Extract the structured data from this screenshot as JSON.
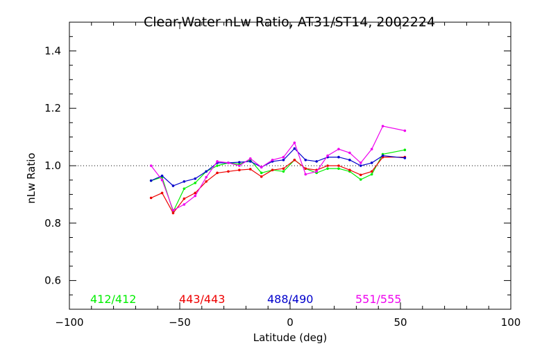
{
  "chart_data": {
    "type": "line",
    "title": "Clear-Water nLw Ratio, AT31/ST14, 2002224",
    "xlabel": "Latitude (deg)",
    "ylabel": "nLw Ratio",
    "xlim": [
      -100,
      100
    ],
    "ylim": [
      0.5,
      1.5
    ],
    "xticks": [
      -100,
      -50,
      0,
      50,
      100
    ],
    "yticks": [
      0.6,
      0.8,
      1.0,
      1.2,
      1.4
    ],
    "xtick_labels": [
      "−100",
      "−50",
      "0",
      "50",
      "100"
    ],
    "ytick_labels": [
      "0.6",
      "0.8",
      "1.0",
      "1.2",
      "1.4"
    ],
    "reference_line": 1.0,
    "grid": false,
    "legend_position": "bottom",
    "series": [
      {
        "name": "412/412",
        "color": "#00ee00",
        "x": [
          -63,
          -58,
          -53,
          -48,
          -43,
          -38,
          -33,
          -28,
          -23,
          -18,
          -13,
          -8,
          -3,
          2,
          7,
          12,
          17,
          22,
          27,
          32,
          37,
          42,
          52
        ],
        "y": [
          0.948,
          0.96,
          0.84,
          0.92,
          0.94,
          0.98,
          1.0,
          1.01,
          1.005,
          1.02,
          0.975,
          0.985,
          0.98,
          1.02,
          0.99,
          0.975,
          0.99,
          0.99,
          0.98,
          0.952,
          0.97,
          1.04,
          1.055
        ]
      },
      {
        "name": "443/443",
        "color": "#ee0000",
        "x": [
          -63,
          -58,
          -53,
          -48,
          -43,
          -38,
          -33,
          -28,
          -23,
          -18,
          -13,
          -8,
          -3,
          2,
          7,
          12,
          17,
          22,
          27,
          32,
          37,
          42,
          52
        ],
        "y": [
          0.888,
          0.905,
          0.835,
          0.885,
          0.905,
          0.945,
          0.975,
          0.98,
          0.985,
          0.988,
          0.962,
          0.985,
          0.99,
          1.02,
          0.99,
          0.985,
          1.0,
          1.0,
          0.985,
          0.968,
          0.98,
          1.03,
          1.03
        ]
      },
      {
        "name": "488/490",
        "color": "#0000cc",
        "x": [
          -63,
          -58,
          -53,
          -48,
          -43,
          -38,
          -33,
          -28,
          -23,
          -18,
          -13,
          -8,
          -3,
          2,
          7,
          12,
          17,
          22,
          27,
          32,
          37,
          42,
          52
        ],
        "y": [
          0.948,
          0.965,
          0.93,
          0.945,
          0.955,
          0.98,
          1.01,
          1.01,
          1.012,
          1.015,
          0.995,
          1.015,
          1.02,
          1.06,
          1.02,
          1.015,
          1.03,
          1.03,
          1.02,
          1.0,
          1.01,
          1.035,
          1.027
        ]
      },
      {
        "name": "551/555",
        "color": "#ee00ee",
        "x": [
          -63,
          -58,
          -53,
          -48,
          -43,
          -38,
          -33,
          -28,
          -23,
          -18,
          -13,
          -8,
          -3,
          2,
          7,
          12,
          17,
          22,
          27,
          32,
          37,
          42,
          52
        ],
        "y": [
          1.0,
          0.95,
          0.845,
          0.865,
          0.895,
          0.96,
          1.015,
          1.01,
          1.0,
          1.025,
          0.995,
          1.02,
          1.03,
          1.08,
          0.97,
          0.98,
          1.035,
          1.058,
          1.045,
          1.01,
          1.058,
          1.138,
          1.122
        ]
      }
    ]
  }
}
